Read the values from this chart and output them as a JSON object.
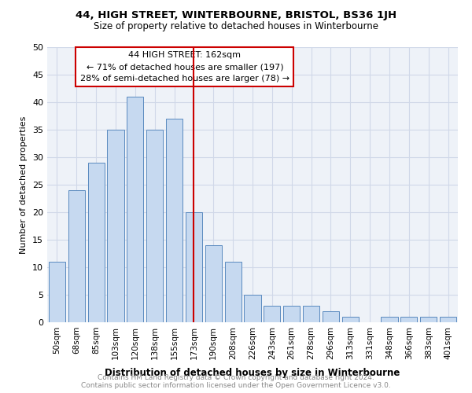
{
  "title": "44, HIGH STREET, WINTERBOURNE, BRISTOL, BS36 1JH",
  "subtitle": "Size of property relative to detached houses in Winterbourne",
  "xlabel": "Distribution of detached houses by size in Winterbourne",
  "ylabel": "Number of detached properties",
  "footer_line1": "Contains HM Land Registry data © Crown copyright and database right 2024.",
  "footer_line2": "Contains public sector information licensed under the Open Government Licence v3.0.",
  "categories": [
    "50sqm",
    "68sqm",
    "85sqm",
    "103sqm",
    "120sqm",
    "138sqm",
    "155sqm",
    "173sqm",
    "190sqm",
    "208sqm",
    "226sqm",
    "243sqm",
    "261sqm",
    "278sqm",
    "296sqm",
    "313sqm",
    "331sqm",
    "348sqm",
    "366sqm",
    "383sqm",
    "401sqm"
  ],
  "values": [
    11,
    24,
    29,
    35,
    41,
    35,
    37,
    20,
    14,
    11,
    5,
    3,
    3,
    3,
    2,
    1,
    0,
    1,
    1,
    1,
    1
  ],
  "bar_color": "#c6d9f0",
  "bar_edge_color": "#5a8abf",
  "red_line_index": 7,
  "annotation_box_line1": "44 HIGH STREET: 162sqm",
  "annotation_box_line2": "← 71% of detached houses are smaller (197)",
  "annotation_box_line3": "28% of semi-detached houses are larger (78) →",
  "annotation_box_color": "#ffffff",
  "annotation_box_edge_color": "#cc0000",
  "red_line_color": "#cc0000",
  "grid_color": "#d0d8e8",
  "background_color": "#eef2f8",
  "ylim": [
    0,
    50
  ],
  "yticks": [
    0,
    5,
    10,
    15,
    20,
    25,
    30,
    35,
    40,
    45,
    50
  ]
}
